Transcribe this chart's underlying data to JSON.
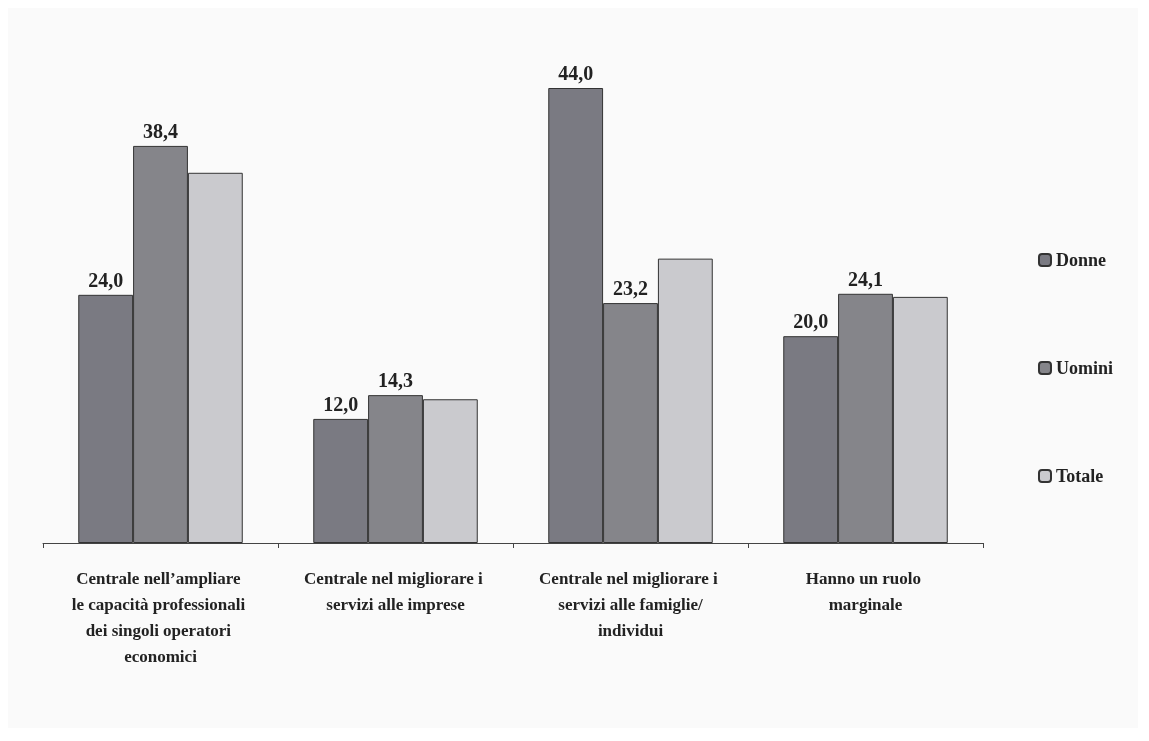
{
  "chart_data": {
    "type": "bar",
    "categories": [
      "Centrale nell’ampliare le capacità professionali dei singoli operatori economici",
      "Centrale nel migliorare i servizi alle imprese",
      "Centrale nel migliorare i servizi alle famiglie/individui",
      "Hanno un ruolo marginale"
    ],
    "series": [
      {
        "name": "Donne",
        "color": "#7a7a82",
        "values": [
          24.0,
          12.0,
          44.0,
          20.0
        ],
        "value_labels": [
          "24,0",
          "12,0",
          "44,0",
          "20,0"
        ]
      },
      {
        "name": "Uomini",
        "color": "#85858a",
        "values": [
          38.4,
          14.3,
          23.2,
          24.1
        ],
        "value_labels": [
          "38,4",
          "14,3",
          "23,2",
          "24,1"
        ]
      },
      {
        "name": "Totale",
        "color": "#cacace",
        "values": [
          35.8,
          13.9,
          27.5,
          23.8
        ],
        "value_labels": [
          null,
          null,
          null,
          null
        ]
      }
    ],
    "legend": "right",
    "grid": false
  }
}
